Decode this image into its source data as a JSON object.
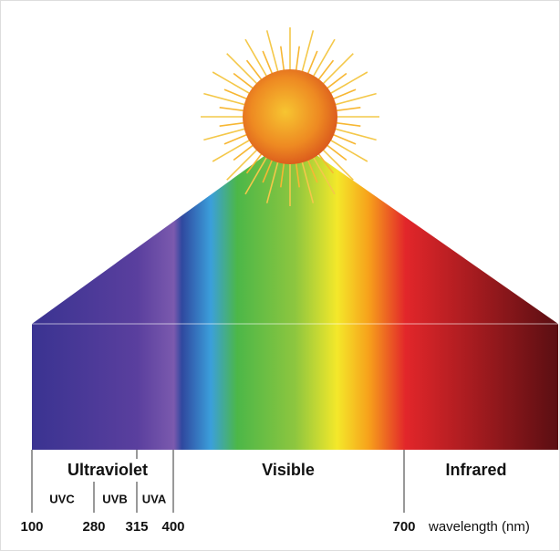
{
  "bands": {
    "ultraviolet": "Ultraviolet",
    "visible": "Visible",
    "infrared": "Infrared"
  },
  "uv_bands": [
    "UVC",
    "UVB",
    "UVA"
  ],
  "wavelength_labels": [
    "100",
    "280",
    "315",
    "400",
    "700"
  ],
  "axis_label": "wavelength (nm)"
}
